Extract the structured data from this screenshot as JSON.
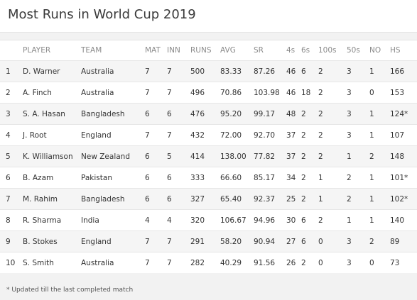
{
  "title": "Most Runs in World Cup 2019",
  "headers": [
    "",
    "PLAYER",
    "TEAM",
    "MAT",
    "INN",
    "RUNS",
    "AVG",
    "SR",
    "4s",
    "6s",
    "100s",
    "50s",
    "NO",
    "HS"
  ],
  "rows": [
    [
      "1",
      "D. Warner",
      "Australia",
      "7",
      "7",
      "500",
      "83.33",
      "87.26",
      "46",
      "6",
      "2",
      "3",
      "1",
      "166"
    ],
    [
      "2",
      "A. Finch",
      "Australia",
      "7",
      "7",
      "496",
      "70.86",
      "103.98",
      "46",
      "18",
      "2",
      "3",
      "0",
      "153"
    ],
    [
      "3",
      "S. A. Hasan",
      "Bangladesh",
      "6",
      "6",
      "476",
      "95.20",
      "99.17",
      "48",
      "2",
      "2",
      "3",
      "1",
      "124*"
    ],
    [
      "4",
      "J. Root",
      "England",
      "7",
      "7",
      "432",
      "72.00",
      "92.70",
      "37",
      "2",
      "2",
      "3",
      "1",
      "107"
    ],
    [
      "5",
      "K. Williamson",
      "New Zealand",
      "6",
      "5",
      "414",
      "138.00",
      "77.82",
      "37",
      "2",
      "2",
      "1",
      "2",
      "148"
    ],
    [
      "6",
      "B. Azam",
      "Pakistan",
      "6",
      "6",
      "333",
      "66.60",
      "85.17",
      "34",
      "2",
      "1",
      "2",
      "1",
      "101*"
    ],
    [
      "7",
      "M. Rahim",
      "Bangladesh",
      "6",
      "6",
      "327",
      "65.40",
      "92.37",
      "25",
      "2",
      "1",
      "2",
      "1",
      "102*"
    ],
    [
      "8",
      "R. Sharma",
      "India",
      "4",
      "4",
      "320",
      "106.67",
      "94.96",
      "30",
      "6",
      "2",
      "1",
      "1",
      "140"
    ],
    [
      "9",
      "B. Stokes",
      "England",
      "7",
      "7",
      "291",
      "58.20",
      "90.94",
      "27",
      "6",
      "0",
      "3",
      "2",
      "89"
    ],
    [
      "10",
      "S. Smith",
      "Australia",
      "7",
      "7",
      "282",
      "40.29",
      "91.56",
      "26",
      "2",
      "0",
      "3",
      "0",
      "73"
    ]
  ],
  "footnote": "* Updated till the last completed match"
}
